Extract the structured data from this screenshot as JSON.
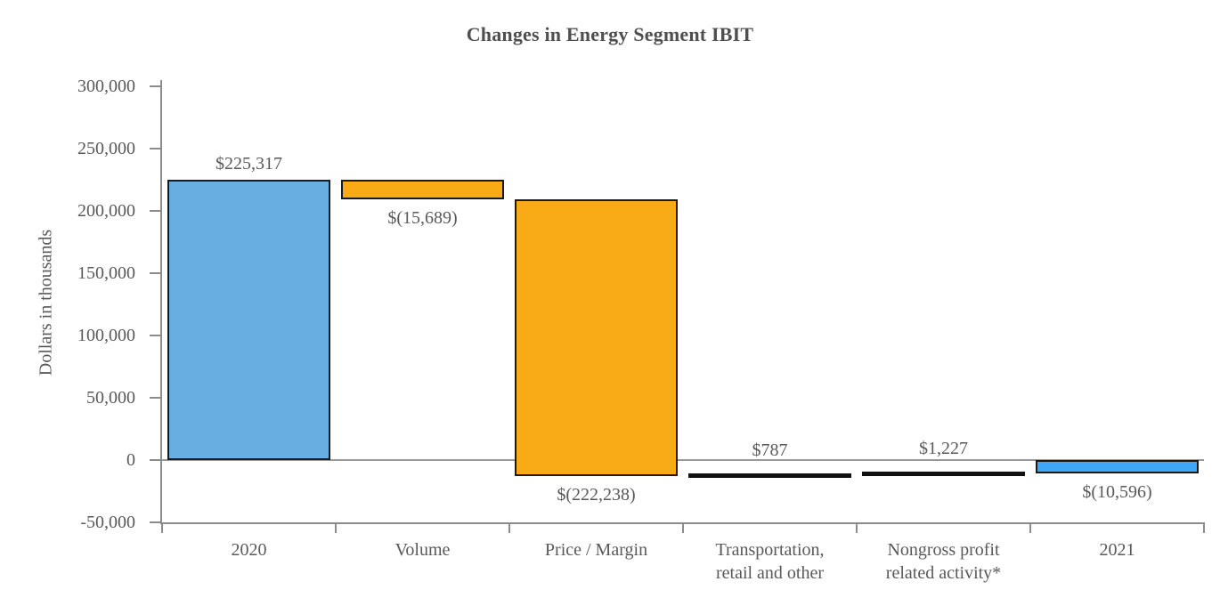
{
  "chart_data": {
    "type": "bar",
    "subtype": "waterfall",
    "title": "Changes in Energy Segment IBIT",
    "xlabel": "",
    "ylabel": "Dollars in thousands",
    "ylim": [
      -50000,
      300000
    ],
    "ytick_step": 50000,
    "grid": "zero-line-only",
    "legend": "none",
    "yticks": [
      {
        "value": 300000,
        "label": "300,000"
      },
      {
        "value": 250000,
        "label": "250,000"
      },
      {
        "value": 200000,
        "label": "200,000"
      },
      {
        "value": 150000,
        "label": "150,000"
      },
      {
        "value": 100000,
        "label": "100,000"
      },
      {
        "value": 50000,
        "label": "50,000"
      },
      {
        "value": 0,
        "label": "0"
      },
      {
        "value": -50000,
        "label": "-50,000"
      }
    ],
    "categories": [
      "2020",
      "Volume",
      "Price / Margin",
      "Transportation,\nretail and other",
      "Nongross profit\nrelated activity*",
      "2021"
    ],
    "values": [
      225317,
      -15689,
      -222238,
      787,
      1227,
      -10596
    ],
    "bars": [
      {
        "category": "2020",
        "value": 225317,
        "start": 0,
        "end": 225317,
        "data_label": "$225,317",
        "label_position": "above",
        "color": "#69AEE1"
      },
      {
        "category": "Volume",
        "value": -15689,
        "start": 225317,
        "end": 209628,
        "data_label": "$(15,689)",
        "label_position": "below",
        "color": "#F8AB17"
      },
      {
        "category": "Price / Margin",
        "value": -222238,
        "start": 209628,
        "end": -12610,
        "data_label": "$(222,238)",
        "label_position": "below",
        "color": "#F8AB17"
      },
      {
        "category": "Transportation, retail and other",
        "value": 787,
        "start": -12610,
        "end": -11823,
        "data_label": "$787",
        "label_position": "above",
        "color": "#111111"
      },
      {
        "category": "Nongross profit related activity*",
        "value": 1227,
        "start": -11823,
        "end": -10596,
        "data_label": "$1,227",
        "label_position": "above",
        "color": "#111111"
      },
      {
        "category": "2021",
        "value": -10596,
        "start": 0,
        "end": -10596,
        "data_label": "$(10,596)",
        "label_position": "below",
        "color": "#3FA7F5"
      }
    ],
    "colors": {
      "start_end_2020_bar": "#69AEE1",
      "end_2021_bar": "#3FA7F5",
      "decrease_bar": "#F8AB17",
      "tiny_bar": "#111111",
      "bar_border": "#1a1a1a",
      "axis": "#8c8c8c",
      "text": "#595959"
    }
  }
}
